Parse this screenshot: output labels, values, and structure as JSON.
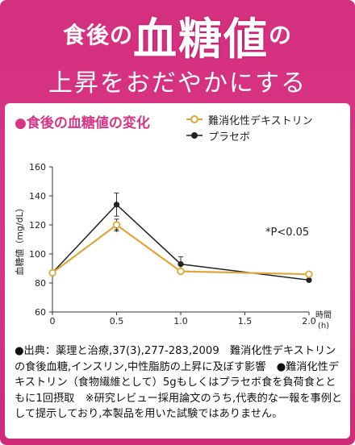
{
  "header": {
    "line1_prefix": "食後の",
    "line1_main": "血糖値",
    "line1_suffix": "の",
    "line2": "上昇をおだやかにする"
  },
  "colors": {
    "brand_pink": "#d93585",
    "series_orange": "#e2a53a",
    "series_black": "#222222"
  },
  "subtitle": "●食後の血糖値の変化",
  "legend": [
    {
      "label": "難消化性デキストリン",
      "marker": "open-circle-orange"
    },
    {
      "label": "プラセボ",
      "marker": "filled-circle-black"
    }
  ],
  "annotation": "*P<0.05",
  "chart_data": {
    "type": "line",
    "title": "食後の血糖値の変化",
    "xlabel": "時間",
    "xunit": "(h)",
    "ylabel": "血糖値（mg/dL）",
    "xlim": [
      0,
      2.0
    ],
    "ylim": [
      60,
      160
    ],
    "x_ticks": [
      "0",
      "0.5",
      "1.0",
      "1.5",
      "2.0"
    ],
    "y_ticks": [
      "60",
      "80",
      "100",
      "120",
      "140",
      "160"
    ],
    "x": [
      0,
      0.5,
      1.0,
      2.0
    ],
    "series": [
      {
        "name": "難消化性デキストリン",
        "values": [
          87,
          120,
          88,
          86
        ],
        "error": [
          0,
          4,
          0,
          0
        ],
        "color": "#e2a53a",
        "marker": "open"
      },
      {
        "name": "プラセボ",
        "values": [
          87,
          134,
          93,
          82
        ],
        "error": [
          0,
          8,
          5,
          0
        ],
        "color": "#222222",
        "marker": "filled"
      }
    ],
    "significance_marks": [
      {
        "x": 0.5,
        "label": "*"
      }
    ],
    "grid": false
  },
  "footnote": "●出典：薬理と治療,37(3),277-283,2009　難消化性デキストリンの食後血糖,インスリン,中性脂肪の上昇に及ぼす影響　●難消化性デキストリン（食物繊維として）5gもしくはプラセボ食を負荷食とともに1回摂取　※研究レビュー採用論文のうち,代表的な一報を事例として提示しており,本製品を用いた試験ではありません。"
}
